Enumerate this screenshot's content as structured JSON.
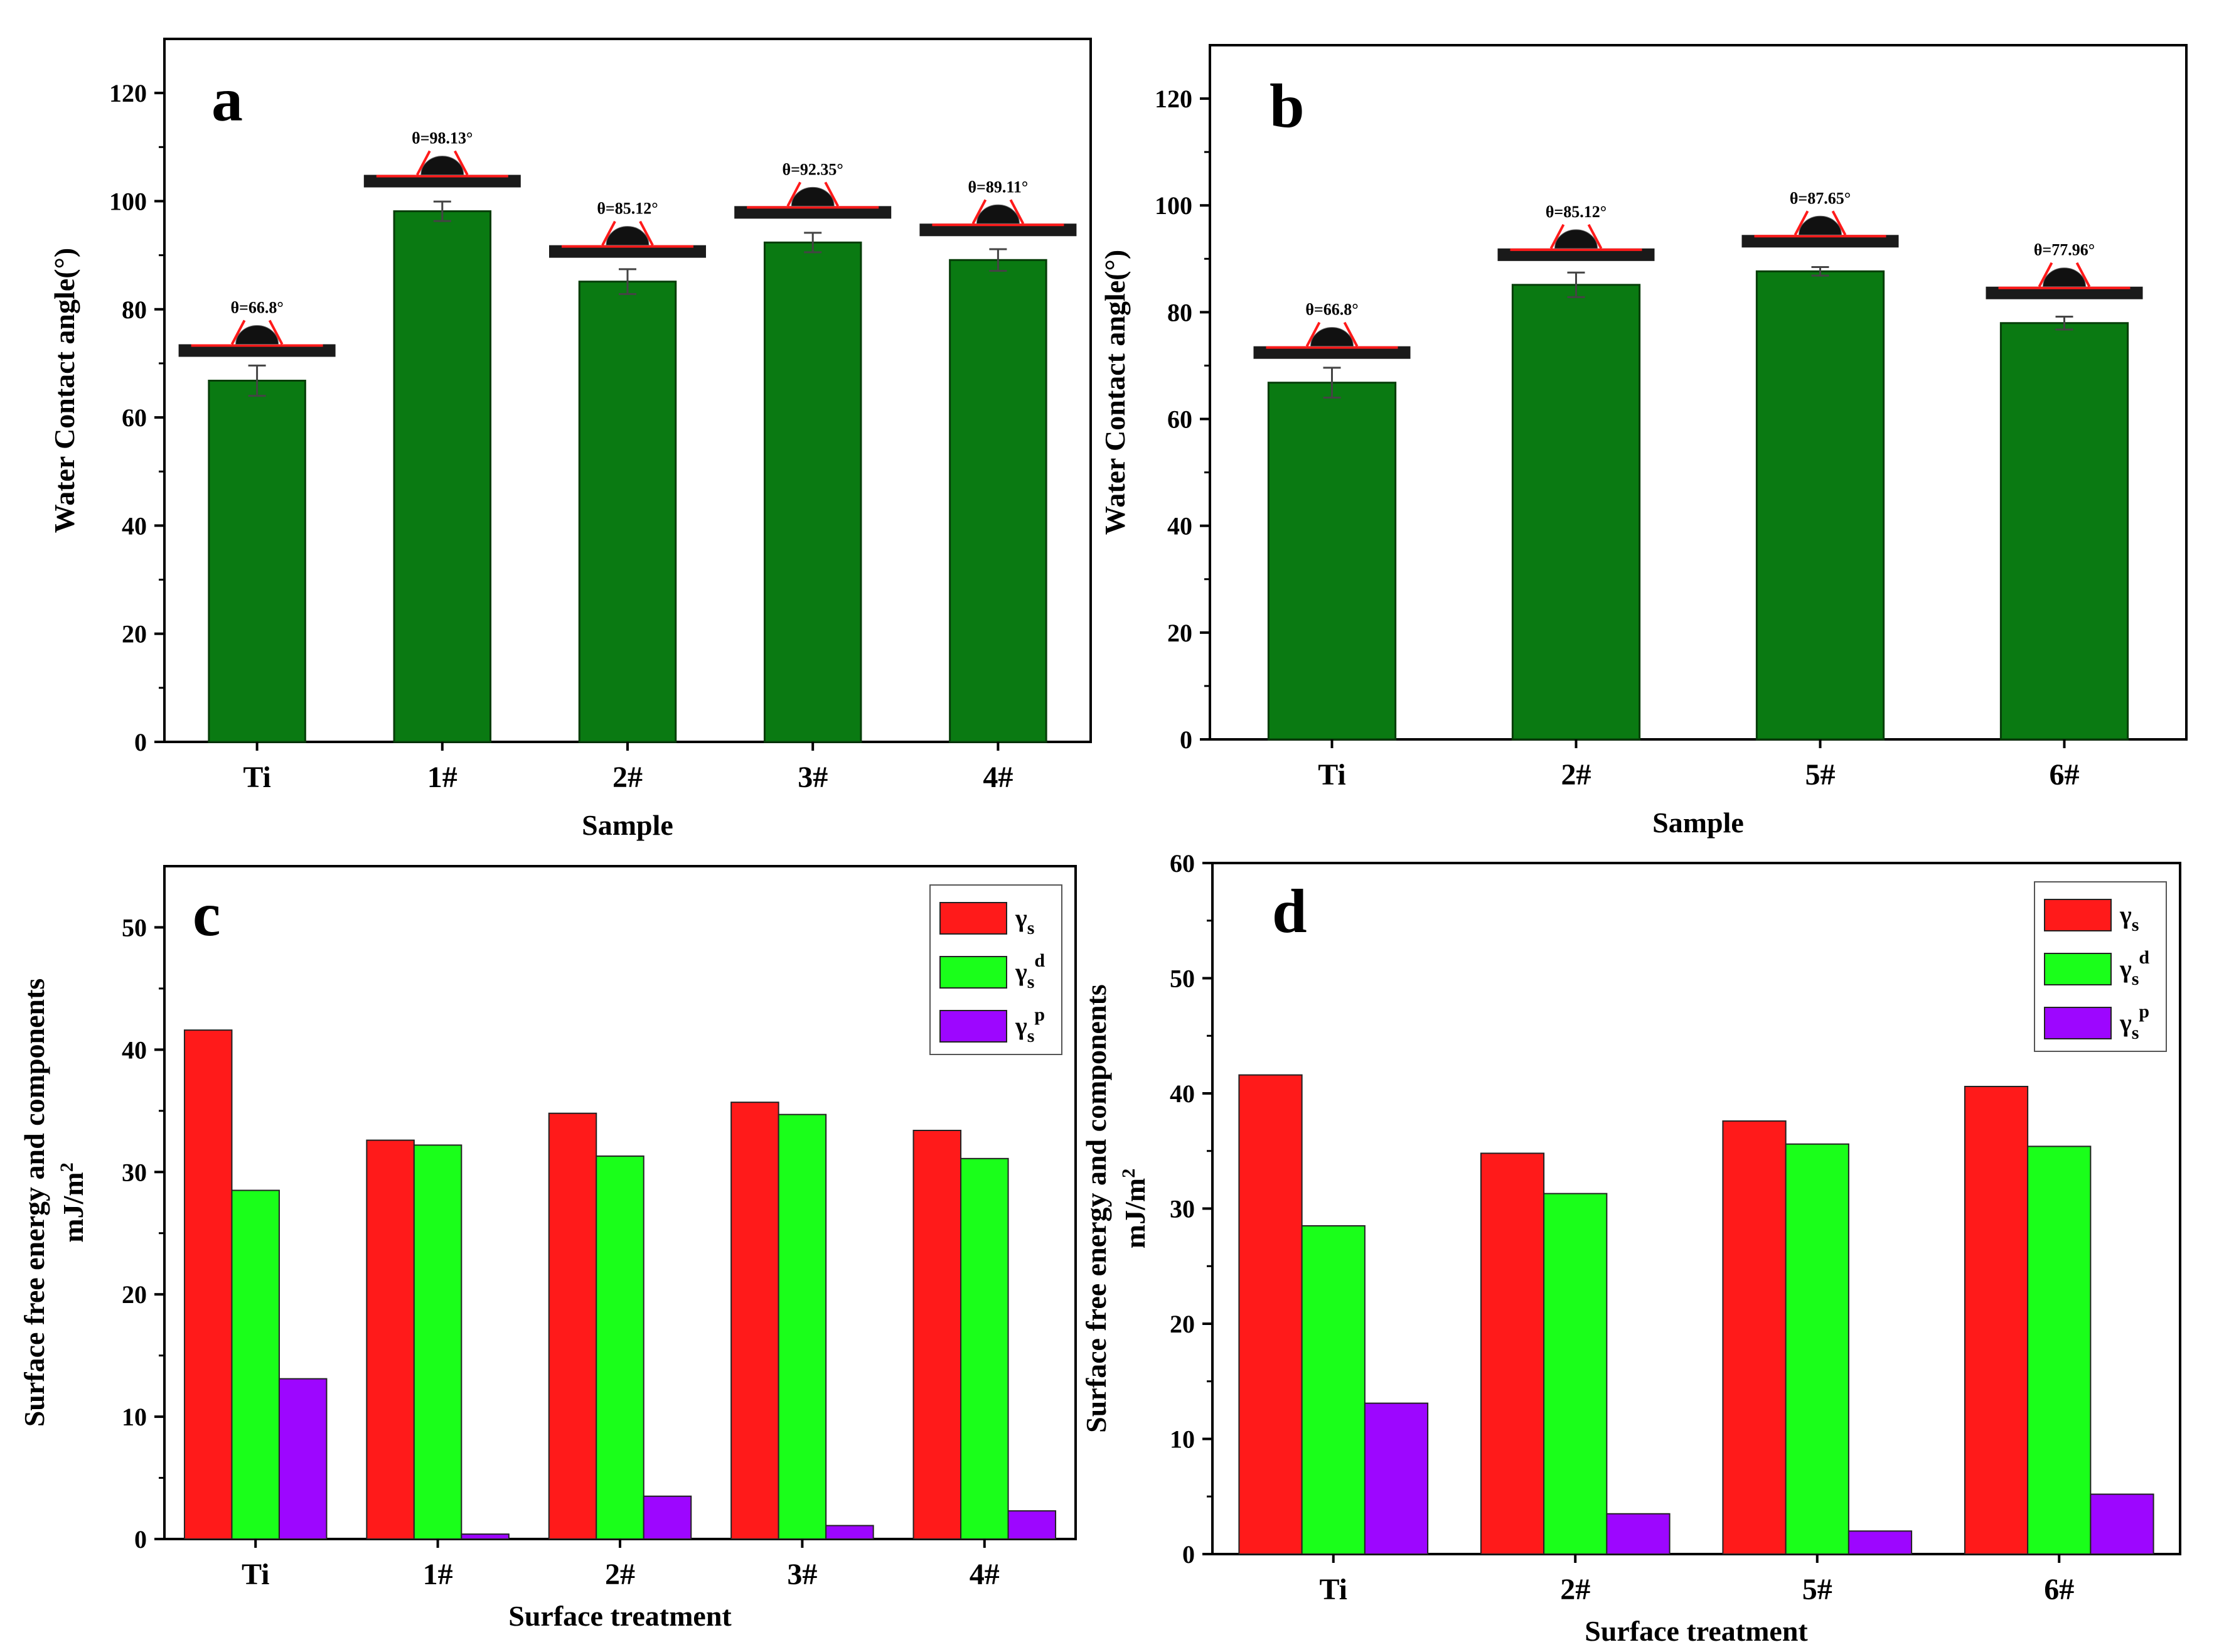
{
  "colors": {
    "green_bar": "#0a7a12",
    "red": "#ff1a1a",
    "light_green": "#1aff1a",
    "purple": "#9d06ff",
    "substrate": "#1a1a1a",
    "axis": "#000000"
  },
  "chart_data": [
    {
      "id": "a",
      "panel_label": "a",
      "type": "bar",
      "categories": [
        "Ti",
        "1#",
        "2#",
        "3#",
        "4#"
      ],
      "values": [
        66.8,
        98.13,
        85.12,
        92.35,
        89.11
      ],
      "errors": [
        2.8,
        1.8,
        2.3,
        1.8,
        2.0
      ],
      "annotations": [
        "θ=66.8°",
        "θ=98.13°",
        "θ=85.12°",
        "θ=92.35°",
        "θ=89.11°"
      ],
      "xlabel": "Sample",
      "ylabel": "Water Contact angle(°)",
      "ylim": [
        0,
        130
      ],
      "yticks": [
        0,
        20,
        40,
        60,
        80,
        100,
        120
      ]
    },
    {
      "id": "b",
      "panel_label": "b",
      "type": "bar",
      "categories": [
        "Ti",
        "2#",
        "5#",
        "6#"
      ],
      "values": [
        66.8,
        85.12,
        87.65,
        77.96
      ],
      "errors": [
        2.8,
        2.3,
        0.8,
        1.2
      ],
      "annotations": [
        "θ=66.8°",
        "θ=85.12°",
        "θ=87.65°",
        "θ=77.96°"
      ],
      "xlabel": "Sample",
      "ylabel": "Water Contact angle(°)",
      "ylim": [
        0,
        130
      ],
      "yticks": [
        0,
        20,
        40,
        60,
        80,
        100,
        120
      ]
    },
    {
      "id": "c",
      "panel_label": "c",
      "type": "bar",
      "categories": [
        "Ti",
        "1#",
        "2#",
        "3#",
        "4#"
      ],
      "series": [
        {
          "name": "γs",
          "base": "γ",
          "sub": "s",
          "sup": "",
          "color": "#ff1a1a",
          "values": [
            41.6,
            32.6,
            34.8,
            35.7,
            33.4
          ]
        },
        {
          "name": "γs d",
          "base": "γ",
          "sub": "s",
          "sup": "d",
          "color": "#1aff1a",
          "values": [
            28.5,
            32.2,
            31.3,
            34.7,
            31.1
          ]
        },
        {
          "name": "γs p",
          "base": "γ",
          "sub": "s",
          "sup": "p",
          "color": "#9d06ff",
          "values": [
            13.1,
            0.4,
            3.5,
            1.1,
            2.3
          ]
        }
      ],
      "xlabel": "Surface treatment",
      "ylabel_line1": "Surface free energy and components",
      "ylabel_line2_base": "mJ/m",
      "ylabel_line2_sup": "2",
      "ylim": [
        0,
        55
      ],
      "yticks": [
        0,
        10,
        20,
        30,
        40,
        50
      ],
      "legend_position": "top-right"
    },
    {
      "id": "d",
      "panel_label": "d",
      "type": "bar",
      "categories": [
        "Ti",
        "2#",
        "5#",
        "6#"
      ],
      "series": [
        {
          "name": "γs",
          "base": "γ",
          "sub": "s",
          "sup": "",
          "color": "#ff1a1a",
          "values": [
            41.6,
            34.8,
            37.6,
            40.6
          ]
        },
        {
          "name": "γs d",
          "base": "γ",
          "sub": "s",
          "sup": "d",
          "color": "#1aff1a",
          "values": [
            28.5,
            31.3,
            35.6,
            35.4
          ]
        },
        {
          "name": "γs p",
          "base": "γ",
          "sub": "s",
          "sup": "p",
          "color": "#9d06ff",
          "values": [
            13.1,
            3.5,
            2.0,
            5.2
          ]
        }
      ],
      "xlabel": "Surface treatment",
      "ylabel_line1": "Surface free energy and components",
      "ylabel_line2_base": "mJ/m",
      "ylabel_line2_sup": "2",
      "ylim": [
        0,
        60
      ],
      "yticks": [
        0,
        10,
        20,
        30,
        40,
        50,
        60
      ],
      "legend_position": "top-right"
    }
  ]
}
